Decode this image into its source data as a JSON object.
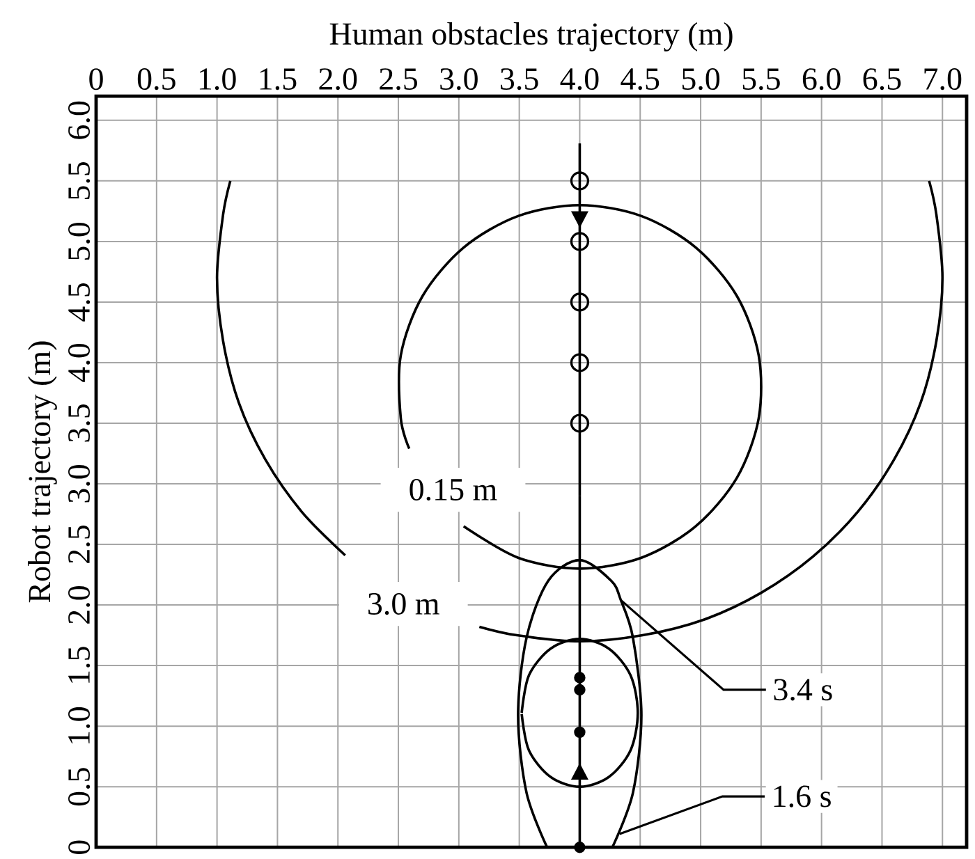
{
  "chart_data": {
    "type": "line",
    "xlabel": "Human obstacles trajectory (m)",
    "ylabel": "Robot trajectory (m)",
    "xlim": [
      0,
      7.2
    ],
    "ylim": [
      0,
      6.2
    ],
    "xticks": [
      0,
      0.5,
      {
        "value": 1,
        "label": "1.0"
      },
      1.5,
      {
        "value": 2,
        "label": "2.0"
      },
      2.5,
      {
        "value": 3,
        "label": "3.0"
      },
      3.5,
      {
        "value": 4,
        "label": "4.0"
      },
      4.5,
      {
        "value": 5,
        "label": "5.0"
      },
      5.5,
      {
        "value": 6,
        "label": "6.0"
      },
      6.5,
      {
        "value": 7,
        "label": "7.0"
      }
    ],
    "yticks": [
      0,
      0.5,
      {
        "value": 1,
        "label": "1.0"
      },
      1.5,
      {
        "value": 2,
        "label": "2.0"
      },
      2.5,
      {
        "value": 3,
        "label": "3.0"
      },
      3.5,
      {
        "value": 4,
        "label": "4.0"
      },
      4.5,
      {
        "value": 5,
        "label": "5.0"
      },
      5.5,
      {
        "value": 6,
        "label": "6.0"
      }
    ],
    "grid": true,
    "series": [
      {
        "color": "#000000",
        "x": [
          1.11,
          1.05,
          1.0,
          1.05,
          1.18,
          1.4,
          1.7,
          2.06
        ],
        "values": [
          5.5,
          5.22,
          4.7,
          4.18,
          3.67,
          3.2,
          2.77,
          2.41
        ]
      },
      {
        "color": "#000000",
        "x": [
          3.17,
          3.48,
          4.0,
          4.52,
          5.03,
          5.5,
          5.93,
          6.3,
          6.6,
          6.82,
          6.95,
          7.0,
          6.95,
          6.89
        ],
        "values": [
          1.82,
          1.75,
          1.7,
          1.75,
          1.88,
          2.1,
          2.4,
          2.77,
          3.2,
          3.67,
          4.18,
          4.7,
          5.22,
          5.5
        ]
      },
      {
        "color": "#000000",
        "x": [
          3.04,
          3.49,
          4.0,
          4.51,
          4.96,
          5.3,
          5.48,
          5.48,
          5.3,
          4.96,
          4.51,
          4.0,
          3.49,
          3.04,
          2.7,
          2.52,
          2.52,
          2.59
        ],
        "values": [
          2.65,
          2.39,
          2.3,
          2.39,
          2.65,
          3.05,
          3.54,
          4.06,
          4.55,
          4.95,
          5.21,
          5.3,
          5.21,
          4.95,
          4.55,
          4.06,
          3.54,
          3.29
        ]
      },
      {
        "color": "#000000",
        "x": [
          4.27,
          4.44,
          4.51,
          4.44,
          4.34,
          4.26,
          4.0,
          3.74,
          3.56,
          3.49,
          3.56,
          3.73
        ],
        "values": [
          0.0,
          0.45,
          1.09,
          1.73,
          2.04,
          2.2,
          2.37,
          2.2,
          1.73,
          1.09,
          0.45,
          0.0
        ]
      },
      {
        "color": "#000000",
        "x": [
          3.52,
          3.58,
          3.76,
          4.0,
          4.24,
          4.42,
          4.48,
          4.42,
          4.24,
          4.0,
          3.76,
          3.58,
          3.52
        ],
        "values": [
          1.11,
          1.42,
          1.64,
          1.72,
          1.64,
          1.42,
          1.11,
          0.8,
          0.58,
          0.5,
          0.58,
          0.8,
          1.1
        ]
      },
      {
        "color": "#000000",
        "x": [
          4,
          4
        ],
        "values": [
          5.81,
          2.9
        ]
      },
      {
        "color": "#000000",
        "x": [
          4,
          4
        ],
        "values": [
          0,
          2.9
        ]
      },
      {
        "type": "scatter",
        "color": "#000000",
        "marker": "circle",
        "x": [
          4,
          4,
          4,
          4,
          4
        ],
        "values": [
          3.5,
          4.0,
          4.5,
          5.0,
          5.5
        ]
      },
      {
        "type": "scatter",
        "color": "#000000",
        "marker": "dot",
        "x": [
          4,
          4,
          4,
          4
        ],
        "values": [
          0,
          0.95,
          1.3,
          1.4
        ]
      }
    ],
    "annotations": [
      "0.15 m",
      "3.0 m",
      {
        "text": "3.4 s",
        "x": 4.34,
        "y": 2.04
      },
      {
        "text": "1.6 s",
        "x": 4.33,
        "y": 0.11
      }
    ]
  }
}
